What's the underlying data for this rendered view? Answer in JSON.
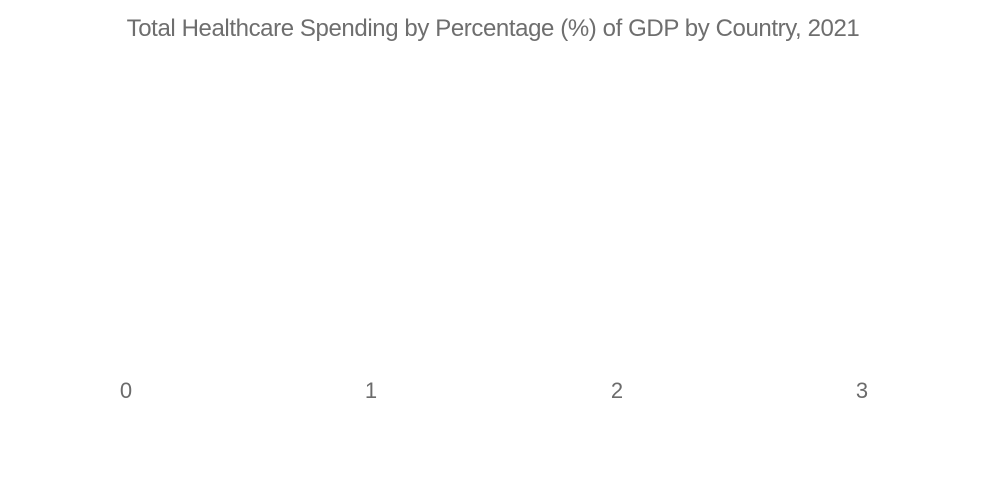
{
  "chart": {
    "title": "Total Healthcare Spending by Percentage (%) of GDP by Country, 2021",
    "x_ticks": [
      "0",
      "1",
      "2",
      "3"
    ]
  },
  "chart_data": {
    "type": "bar",
    "orientation": "horizontal",
    "title": "Total Healthcare Spending by Percentage (%) of GDP by Country, 2021",
    "xlabel": "",
    "ylabel": "",
    "xlim": [
      0,
      3
    ],
    "x_tick_labels": [
      "0",
      "1",
      "2",
      "3"
    ],
    "categories": [],
    "series": [],
    "values": [],
    "grid": false,
    "legend": false,
    "plot_area_state": "empty — no bars, gridlines, or axis lines rendered"
  },
  "colors": {
    "background": "#ffffff",
    "title_text": "#6e6e6e",
    "tick_text": "#6b6b6b"
  }
}
